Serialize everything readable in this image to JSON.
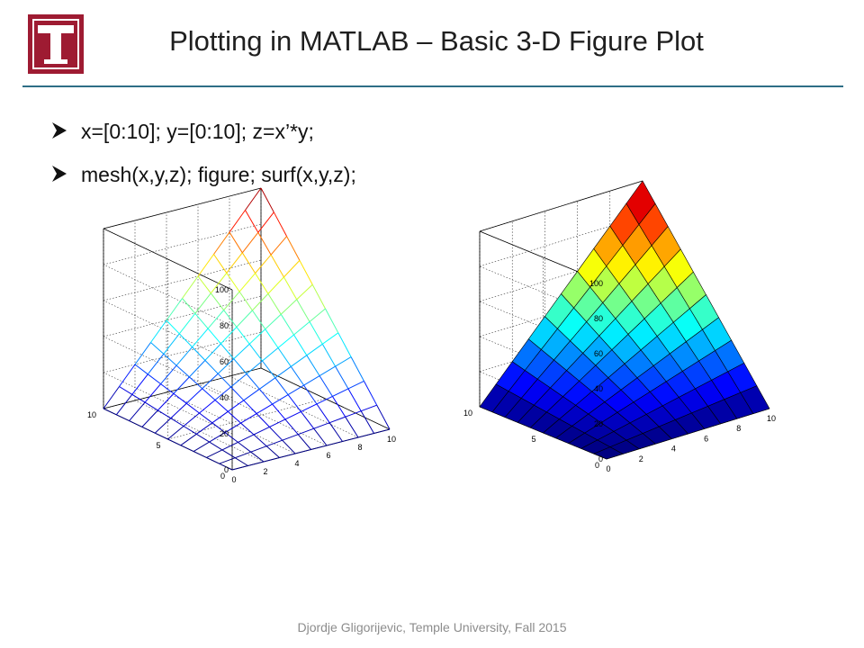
{
  "slide": {
    "title": "Plotting in MATLAB – Basic 3-D Figure Plot",
    "footer": "Djordje Gligorijevic, Temple University, Fall 2015",
    "title_rule_color": "#2e6e86",
    "logo": {
      "icon": "temple-t-logo",
      "color": "#9e1b32"
    },
    "bullets": [
      {
        "text": "x=[0:10]; y=[0:10]; z=x’*y;",
        "icon": "arrow-bullet-icon"
      },
      {
        "text": "mesh(x,y,z); figure; surf(x,y,z);",
        "icon": "arrow-bullet-icon"
      }
    ]
  },
  "chart_data": [
    {
      "type": "mesh",
      "x": [
        0,
        1,
        2,
        3,
        4,
        5,
        6,
        7,
        8,
        9,
        10
      ],
      "y": [
        0,
        1,
        2,
        3,
        4,
        5,
        6,
        7,
        8,
        9,
        10
      ],
      "z_formula": "z = x'*y",
      "zlim": [
        0,
        100
      ],
      "x_ticks": [
        "0",
        "2",
        "4",
        "6",
        "8",
        "10"
      ],
      "y_ticks": [
        "0",
        "5",
        "10"
      ],
      "z_ticks": [
        "0",
        "20",
        "40",
        "60",
        "80",
        "100"
      ],
      "colormap": "jet",
      "grid": true
    },
    {
      "type": "surf",
      "x": [
        0,
        1,
        2,
        3,
        4,
        5,
        6,
        7,
        8,
        9,
        10
      ],
      "y": [
        0,
        1,
        2,
        3,
        4,
        5,
        6,
        7,
        8,
        9,
        10
      ],
      "z_formula": "z = x'*y",
      "zlim": [
        0,
        100
      ],
      "x_ticks": [
        "0",
        "2",
        "4",
        "6",
        "8",
        "10"
      ],
      "y_ticks": [
        "0",
        "5",
        "10"
      ],
      "z_ticks": [
        "0",
        "20",
        "40",
        "60",
        "80",
        "100"
      ],
      "colormap": "jet",
      "grid": true
    }
  ]
}
